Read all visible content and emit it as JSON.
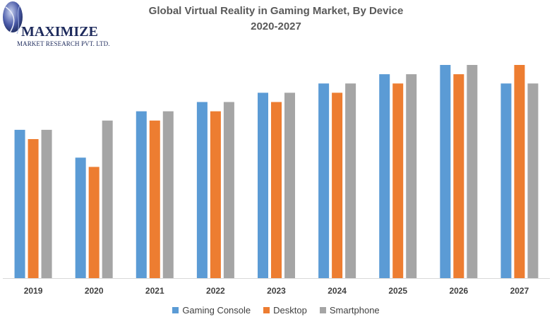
{
  "logo": {
    "name": "MAXIMIZE",
    "tagline": "MARKET RESEARCH PVT. LTD."
  },
  "chart_data": {
    "type": "bar",
    "title": "Global Virtual Reality in Gaming Market, By Device",
    "subtitle": "2020-2027",
    "xlabel": "",
    "ylabel": "",
    "categories": [
      "2019",
      "2020",
      "2021",
      "2022",
      "2023",
      "2024",
      "2025",
      "2026",
      "2027"
    ],
    "series": [
      {
        "name": "Gaming Console",
        "color": "#5b9bd5",
        "values": [
          16,
          13,
          18,
          19,
          20,
          21,
          22,
          23,
          21
        ]
      },
      {
        "name": "Desktop",
        "color": "#ed7d31",
        "values": [
          15,
          12,
          17,
          18,
          19,
          20,
          21,
          22,
          23
        ]
      },
      {
        "name": "Smartphone",
        "color": "#a5a5a5",
        "values": [
          16,
          17,
          18,
          19,
          20,
          21,
          22,
          23,
          21
        ]
      }
    ],
    "ylim": [
      0,
      23
    ],
    "grid": false,
    "legend_position": "bottom"
  }
}
